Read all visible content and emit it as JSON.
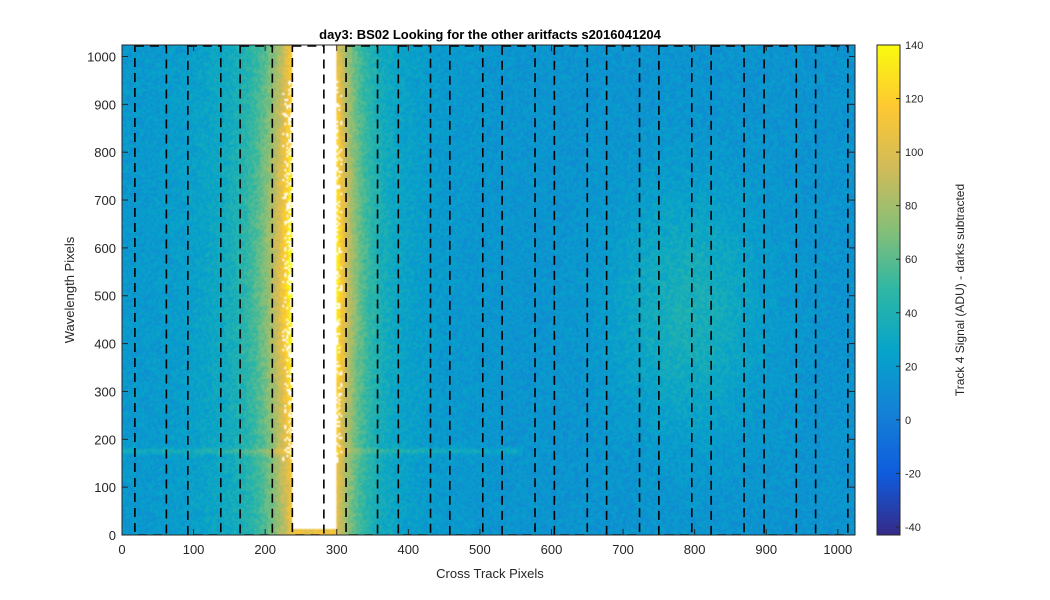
{
  "chart_data": {
    "type": "heatmap",
    "title": "day3: BS02  Looking for the other aritfacts  s2016041204",
    "xlabel": "Cross Track Pixels",
    "ylabel": "Wavelength Pixels",
    "colorbar_label": "Track 4 Signal (ADU) - darks subtracted",
    "xlim": [
      0,
      1024
    ],
    "ylim": [
      0,
      1024
    ],
    "clim": [
      -43,
      140
    ],
    "colormap": "parula",
    "x_ticks": [
      0,
      100,
      200,
      300,
      400,
      500,
      600,
      700,
      800,
      900,
      1000
    ],
    "y_ticks": [
      0,
      100,
      200,
      300,
      400,
      500,
      600,
      700,
      800,
      900,
      1000
    ],
    "colorbar_ticks": [
      -40,
      -20,
      0,
      20,
      40,
      60,
      80,
      100,
      120,
      140
    ],
    "background_signal": 15,
    "features": [
      {
        "name": "saturated-column-block",
        "x_range": [
          237,
          298
        ],
        "y_range": [
          12,
          1024
        ],
        "value": "saturated"
      },
      {
        "name": "bright-band",
        "x_center": 215,
        "y_center": 560,
        "peak_value": 125
      },
      {
        "name": "secondary-band",
        "x_center": 790,
        "y_center": 470,
        "peak_value": 38
      },
      {
        "name": "horizontal-streak",
        "y": 175,
        "x_range": [
          0,
          560
        ],
        "peak_value": 30
      }
    ],
    "dashed_boxes": [
      {
        "x_range": [
          18,
          62
        ],
        "y_range": [
          0,
          1024
        ]
      },
      {
        "x_range": [
          92,
          138
        ],
        "y_range": [
          0,
          1024
        ]
      },
      {
        "x_range": [
          165,
          210
        ],
        "y_range": [
          0,
          1024
        ]
      },
      {
        "x_range": [
          238,
          282
        ],
        "y_range": [
          0,
          1024
        ]
      },
      {
        "x_range": [
          313,
          357
        ],
        "y_range": [
          0,
          1024
        ]
      },
      {
        "x_range": [
          386,
          431
        ],
        "y_range": [
          0,
          1024
        ]
      },
      {
        "x_range": [
          458,
          504
        ],
        "y_range": [
          0,
          1024
        ]
      },
      {
        "x_range": [
          531,
          577
        ],
        "y_range": [
          0,
          1024
        ]
      },
      {
        "x_range": [
          604,
          650
        ],
        "y_range": [
          0,
          1024
        ]
      },
      {
        "x_range": [
          677,
          723
        ],
        "y_range": [
          0,
          1024
        ]
      },
      {
        "x_range": [
          750,
          796
        ],
        "y_range": [
          0,
          1024
        ]
      },
      {
        "x_range": [
          823,
          869
        ],
        "y_range": [
          0,
          1024
        ]
      },
      {
        "x_range": [
          897,
          942
        ],
        "y_range": [
          0,
          1024
        ]
      },
      {
        "x_range": [
          969,
          1014
        ],
        "y_range": [
          0,
          1024
        ]
      }
    ]
  }
}
